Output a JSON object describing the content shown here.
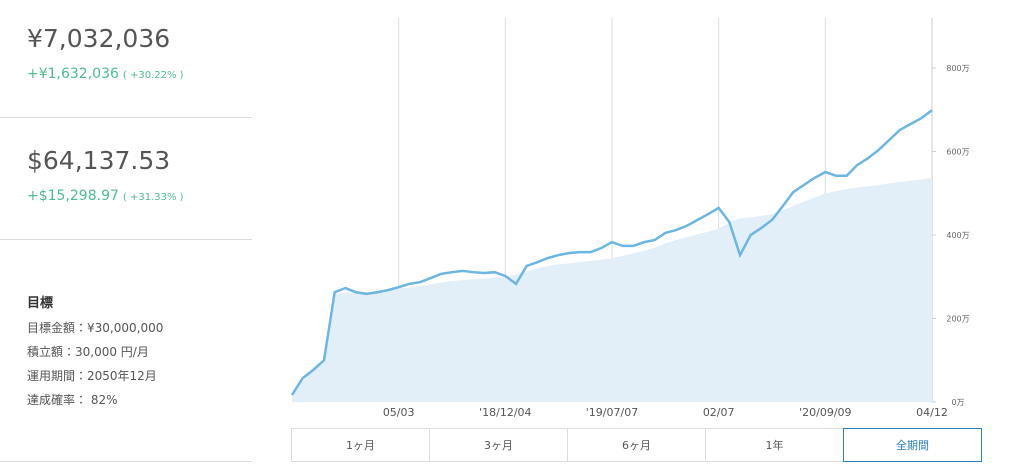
{
  "summary": [
    {
      "amount": "¥7,032,036",
      "change": "+¥1,632,036",
      "percent": "( +30.22% )"
    },
    {
      "amount": "$64,137.53",
      "change": "+$15,298.97",
      "percent": "( +31.33% )"
    }
  ],
  "goal": {
    "title": "目標",
    "lines": [
      "目標金額：¥30,000,000",
      "積立額：30,000 円/月",
      "運用期間：2050年12月",
      "達成確率： 82%"
    ]
  },
  "chart_data": {
    "type": "line",
    "categories": [
      null,
      null,
      null,
      null,
      null,
      null,
      null,
      null,
      null,
      null,
      "05/03",
      null,
      null,
      null,
      null,
      null,
      null,
      null,
      null,
      null,
      "'18/12/04",
      null,
      null,
      null,
      null,
      null,
      null,
      null,
      null,
      null,
      "'19/07/07",
      null,
      null,
      null,
      null,
      null,
      null,
      null,
      null,
      null,
      "02/07",
      null,
      null,
      null,
      null,
      null,
      null,
      null,
      null,
      null,
      "'20/09/09",
      null,
      null,
      null,
      null,
      null,
      null,
      null,
      null,
      null,
      "04/12"
    ],
    "series": [
      {
        "color": "#e3eff8",
        "area": true,
        "values": [
          15,
          50,
          75,
          100,
          260,
          262,
          262,
          263,
          265,
          268,
          272,
          275,
          278,
          282,
          286,
          290,
          292,
          294,
          296,
          298,
          300,
          305,
          312,
          320,
          326,
          330,
          332,
          335,
          338,
          341,
          345,
          350,
          356,
          362,
          370,
          380,
          388,
          395,
          402,
          408,
          415,
          430,
          440,
          442,
          446,
          450,
          460,
          470,
          480,
          490,
          500,
          505,
          510,
          514,
          517,
          520,
          524,
          527,
          530,
          533,
          537
        ]
      },
      {
        "color": "#6cb6e2",
        "values": [
          17,
          57,
          77,
          100,
          263,
          273,
          263,
          259,
          263,
          268,
          275,
          283,
          287,
          297,
          307,
          311,
          314,
          311,
          309,
          311,
          302,
          283,
          326,
          335,
          345,
          352,
          357,
          359,
          359,
          369,
          383,
          374,
          374,
          383,
          388,
          405,
          412,
          422,
          436,
          450,
          465,
          431,
          352,
          400,
          417,
          436,
          469,
          503,
          520,
          537,
          551,
          542,
          542,
          568,
          584,
          604,
          628,
          652,
          666,
          680,
          699
        ]
      }
    ],
    "ylim": [
      0,
      920
    ],
    "yticks": [
      {
        "value": 0,
        "label": "0万"
      },
      {
        "value": 200,
        "label": "200万"
      },
      {
        "value": 400,
        "label": "400万"
      },
      {
        "value": 600,
        "label": "600万"
      },
      {
        "value": 800,
        "label": "800万"
      }
    ]
  },
  "buttons": [
    "1ヶ月",
    "3ヶ月",
    "6ヶ月",
    "1年",
    "全期間"
  ],
  "selected_button": 4
}
